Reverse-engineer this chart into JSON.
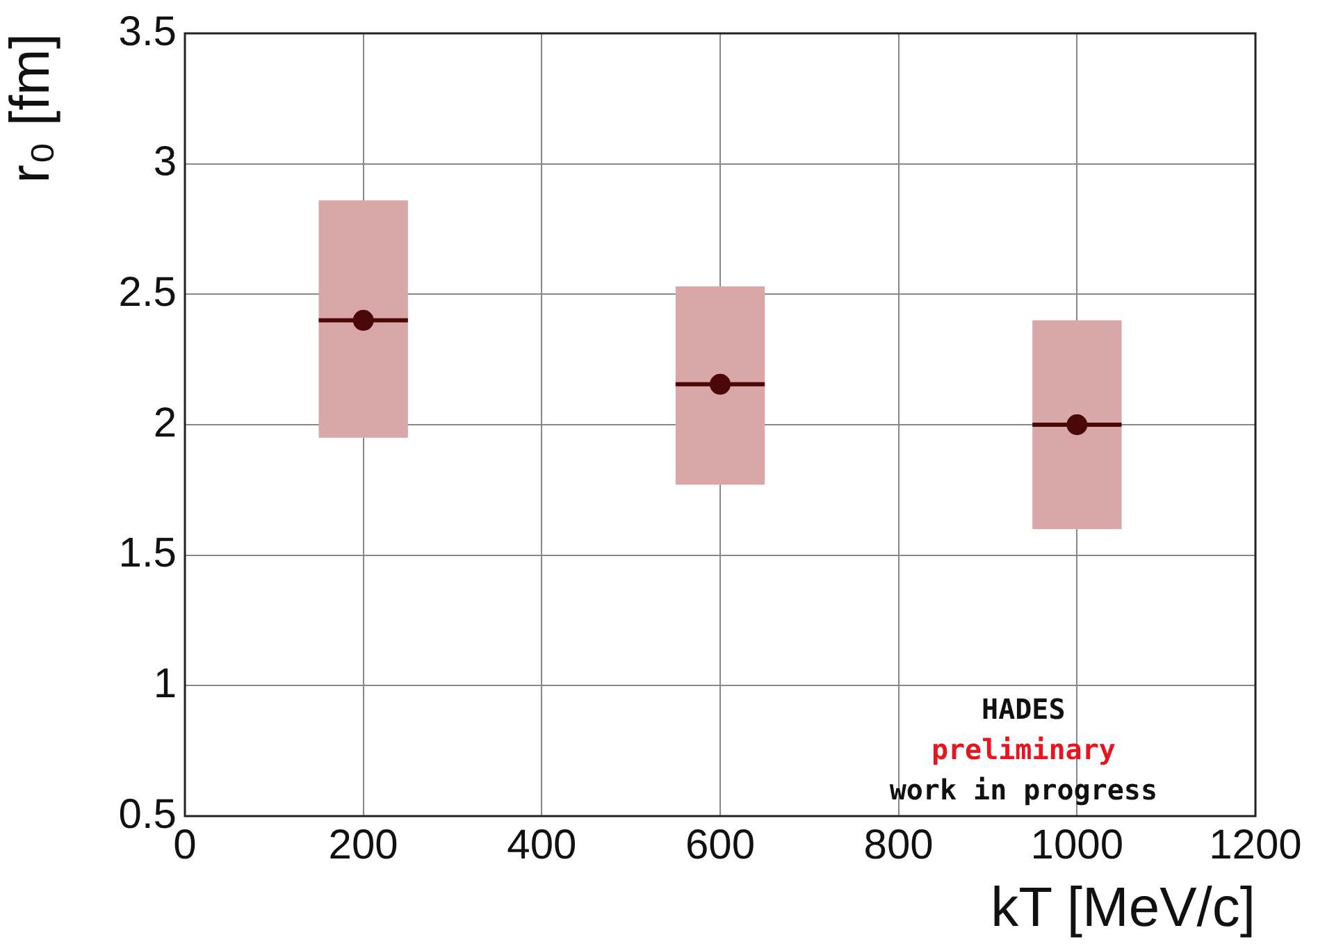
{
  "chart_data": {
    "type": "scatter",
    "xlabel": "kT [MeV/c]",
    "ylabel": "r₀ [fm]",
    "x": [
      200,
      600,
      1000
    ],
    "series": [
      {
        "type": "bar",
        "color": "#d9a7a7",
        "base": [
          1.95,
          1.77,
          1.6
        ],
        "values": [
          0.91,
          0.76,
          0.8
        ]
      },
      {
        "color": "#4a0808",
        "values": [
          2.4,
          2.155,
          2.0
        ],
        "xerrors": [
          50,
          50,
          50
        ]
      }
    ],
    "xlim": [
      0,
      1200
    ],
    "xticks": [
      0,
      200,
      400,
      600,
      800,
      1000,
      1200
    ],
    "ylim": [
      0.5,
      3.5
    ],
    "yticks": [
      0.5,
      1,
      1.5,
      2,
      2.5,
      3,
      3.5
    ],
    "grid": true,
    "marker": "circle",
    "legend": false,
    "annotations": [
      "HADES",
      "preliminary",
      "work in progress"
    ]
  }
}
